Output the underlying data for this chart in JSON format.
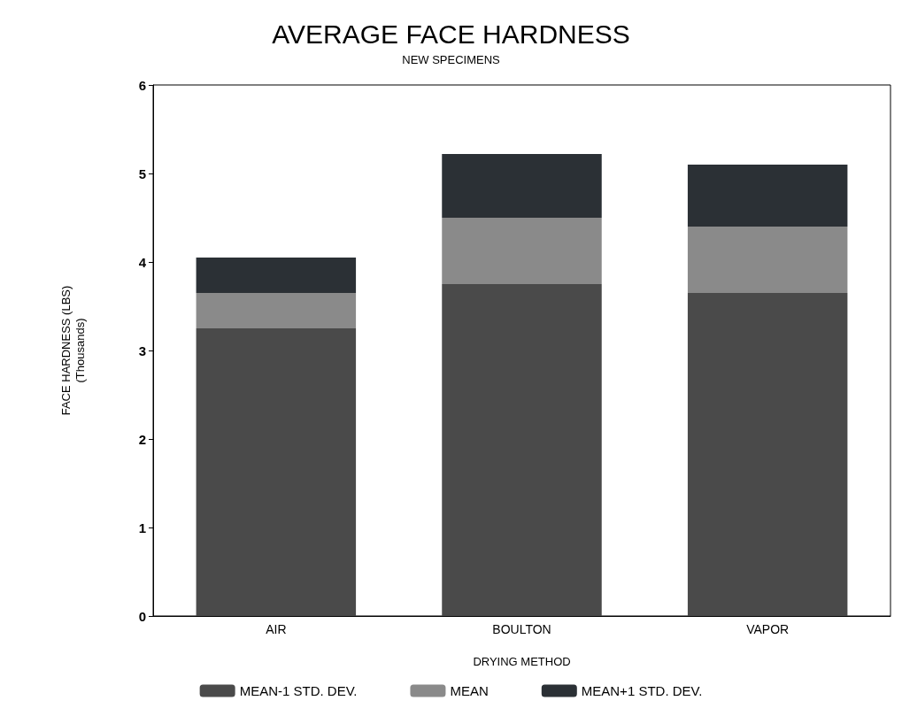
{
  "chart_data": {
    "type": "bar",
    "title": "AVERAGE FACE HARDNESS",
    "subtitle": "NEW SPECIMENS",
    "xlabel": "DRYING METHOD",
    "ylabel": "FACE HARDNESS (LBS)\n(Thousands)",
    "categories": [
      "AIR",
      "BOULTON",
      "VAPOR"
    ],
    "stacked": true,
    "series": [
      {
        "name": "MEAN-1 STD. DEV.",
        "color": "#4a4a4a",
        "values": [
          3.25,
          3.75,
          3.65
        ]
      },
      {
        "name": "MEAN",
        "color": "#8a8a8a",
        "values": [
          0.4,
          0.75,
          0.75
        ]
      },
      {
        "name": "MEAN+1 STD. DEV.",
        "color": "#2b3035",
        "values": [
          0.4,
          0.72,
          0.7
        ]
      }
    ],
    "ylim": [
      0,
      6
    ],
    "yticks": [
      0,
      1,
      2,
      3,
      4,
      5,
      6
    ],
    "grid": false,
    "legend": "bottom"
  }
}
